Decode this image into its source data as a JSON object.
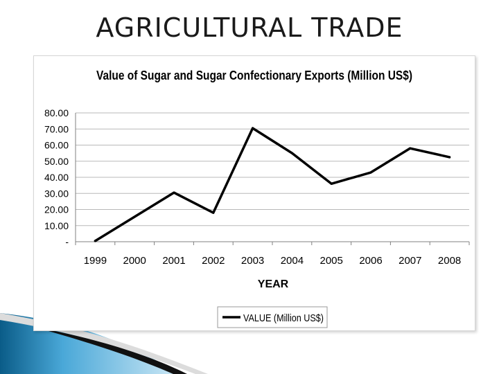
{
  "slide": {
    "title": "AGRICULTURAL TRADE"
  },
  "chart_data": {
    "type": "line",
    "title": "Value of Sugar and Sugar Confectionary Exports (Million US$)",
    "xlabel": "YEAR",
    "ylabel": "",
    "categories": [
      "1999",
      "2000",
      "2001",
      "2002",
      "2003",
      "2004",
      "2005",
      "2006",
      "2007",
      "2008"
    ],
    "series": [
      {
        "name": "VALUE (Million US$)",
        "values": [
          0.5,
          15.5,
          30.5,
          18.0,
          70.5,
          55.0,
          36.0,
          43.0,
          58.0,
          52.5
        ],
        "color": "#000000"
      }
    ],
    "ylim": [
      0,
      80
    ],
    "yticks": [
      "-",
      "10.00",
      "20.00",
      "30.00",
      "40.00",
      "50.00",
      "60.00",
      "70.00",
      "80.00"
    ],
    "grid": true,
    "legend": "bottom"
  },
  "colors": {
    "grid": "#b8b8b8",
    "axis": "#808080",
    "accent_dark": "#0b5e8a",
    "accent_light": "#9fd4ee"
  }
}
